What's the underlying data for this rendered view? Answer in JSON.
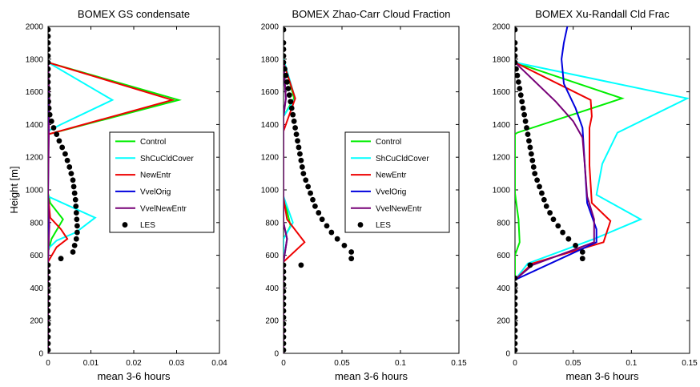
{
  "chart_data": [
    {
      "type": "line",
      "title": "BOMEX GS condensate",
      "xlabel": "mean 3-6 hours",
      "ylabel": "Height [m]",
      "xlim": [
        0,
        0.04
      ],
      "ylim": [
        0,
        2000
      ],
      "xticks": [
        "0",
        "0.01",
        "0.02",
        "0.03",
        "0.04"
      ],
      "yticks": [
        "0",
        "200",
        "400",
        "600",
        "800",
        "1000",
        "1200",
        "1400",
        "1600",
        "1800",
        "2000"
      ],
      "grid": false,
      "legend_position": "center-right",
      "series": [
        {
          "name": "Control",
          "color": "#00ee00",
          "x": [
            0,
            0,
            0.0008,
            0.0035,
            0.0005,
            0,
            0,
            0,
            0.0305,
            0
          ],
          "y": [
            0,
            620,
            700,
            820,
            920,
            980,
            1340,
            1340,
            1550,
            1780
          ]
        },
        {
          "name": "ShCuCldCover",
          "color": "#00ffff",
          "x": [
            0,
            0,
            0.002,
            0.0065,
            0.011,
            0,
            0,
            0.003,
            0.015,
            0
          ],
          "y": [
            0,
            640,
            690,
            740,
            830,
            960,
            1360,
            1400,
            1550,
            1780
          ]
        },
        {
          "name": "NewEntr",
          "color": "#ee0000",
          "x": [
            0,
            0,
            0.002,
            0.0045,
            0.003,
            0.0005,
            0,
            0,
            0.029,
            0
          ],
          "y": [
            0,
            560,
            650,
            700,
            760,
            830,
            970,
            1340,
            1550,
            1780
          ]
        },
        {
          "name": "VvelOrig",
          "color": "#0000dd",
          "x": [
            0,
            0,
            0.0002,
            0,
            0.0002,
            0
          ],
          "y": [
            0,
            560,
            800,
            970,
            1580,
            1780
          ]
        },
        {
          "name": "VvelNewEntr",
          "color": "#770077",
          "x": [
            0,
            0,
            0.0003,
            0,
            0.0003,
            0
          ],
          "y": [
            0,
            560,
            780,
            970,
            1560,
            1780
          ]
        },
        {
          "name": "LES",
          "color": "#000000",
          "marker": "circle",
          "x": [
            0,
            0,
            0,
            0,
            0,
            0,
            0,
            0,
            0,
            0,
            0,
            0,
            0,
            0,
            0.003,
            0.0058,
            0.0062,
            0.0066,
            0.0068,
            0.0068,
            0.0067,
            0.0066,
            0.0065,
            0.0064,
            0.0062,
            0.006,
            0.0058,
            0.0054,
            0.005,
            0.0045,
            0.004,
            0.0033,
            0.0026,
            0.002,
            0.0013,
            0.0008,
            0.0004,
            0.0002,
            0.0001,
            0,
            0,
            0,
            0,
            0,
            0,
            0,
            0,
            0,
            0,
            0
          ],
          "y": [
            20,
            60,
            100,
            140,
            180,
            220,
            260,
            300,
            340,
            380,
            420,
            460,
            500,
            540,
            580,
            620,
            660,
            700,
            740,
            780,
            820,
            860,
            900,
            940,
            980,
            1020,
            1060,
            1100,
            1140,
            1180,
            1220,
            1260,
            1300,
            1340,
            1380,
            1420,
            1460,
            1500,
            1540,
            1580,
            1620,
            1660,
            1700,
            1740,
            1780,
            1820,
            1860,
            1900,
            1940,
            1980
          ]
        }
      ]
    },
    {
      "type": "line",
      "title": "BOMEX Zhao-Carr Cloud Fraction",
      "xlabel": "mean 3-6 hours",
      "ylabel": "",
      "xlim": [
        0,
        0.15
      ],
      "ylim": [
        0,
        2000
      ],
      "xticks": [
        "0",
        "0.05",
        "0.1",
        "0.15"
      ],
      "yticks": [
        "0",
        "200",
        "400",
        "600",
        "800",
        "1000",
        "1200",
        "1400",
        "1600",
        "1800",
        "2000"
      ],
      "grid": false,
      "legend_position": "center-right",
      "series": [
        {
          "name": "Control",
          "color": "#00ee00",
          "x": [
            0,
            0,
            0.006,
            0,
            0,
            0.009,
            0
          ],
          "y": [
            0,
            700,
            780,
            960,
            1450,
            1560,
            1800
          ]
        },
        {
          "name": "ShCuCldCover",
          "color": "#00ffff",
          "x": [
            0,
            0,
            0.008,
            0,
            0,
            0.01,
            0
          ],
          "y": [
            0,
            700,
            800,
            960,
            1450,
            1560,
            1800
          ]
        },
        {
          "name": "NewEntr",
          "color": "#ee0000",
          "x": [
            0,
            0,
            0.018,
            0.003,
            0,
            0,
            0.01,
            0
          ],
          "y": [
            0,
            560,
            680,
            820,
            950,
            1360,
            1560,
            1780
          ]
        },
        {
          "name": "VvelOrig",
          "color": "#0000dd",
          "x": [
            0,
            0,
            0.003,
            0,
            0,
            0.002,
            0
          ],
          "y": [
            0,
            560,
            700,
            800,
            1450,
            1560,
            1780
          ]
        },
        {
          "name": "VvelNewEntr",
          "color": "#770077",
          "x": [
            0,
            0,
            0.003,
            0,
            0,
            0.002,
            0
          ],
          "y": [
            0,
            560,
            700,
            800,
            1450,
            1560,
            1780
          ]
        },
        {
          "name": "LES",
          "color": "#000000",
          "marker": "circle",
          "x": [
            0,
            0,
            0,
            0,
            0,
            0,
            0,
            0,
            0,
            0,
            0,
            0,
            0,
            0,
            0.015,
            0.058,
            0.058,
            0.052,
            0.046,
            0.041,
            0.037,
            0.033,
            0.03,
            0.027,
            0.025,
            0.023,
            0.021,
            0.019,
            0.017,
            0.016,
            0.015,
            0.014,
            0.013,
            0.012,
            0.011,
            0.01,
            0.009,
            0.008,
            0.007,
            0.006,
            0.005,
            0.004,
            0.003,
            0.002,
            0.001,
            0,
            0,
            0,
            0,
            0
          ],
          "y": [
            20,
            60,
            100,
            140,
            180,
            220,
            260,
            300,
            340,
            380,
            420,
            460,
            500,
            540,
            540,
            580,
            620,
            660,
            700,
            740,
            780,
            820,
            860,
            900,
            940,
            980,
            1020,
            1060,
            1100,
            1140,
            1180,
            1220,
            1260,
            1300,
            1340,
            1380,
            1420,
            1460,
            1500,
            1540,
            1580,
            1620,
            1660,
            1700,
            1740,
            1780,
            1820,
            1860,
            1900,
            1980
          ]
        }
      ]
    },
    {
      "type": "line",
      "title": "BOMEX Xu-Randall Cld Frac",
      "xlabel": "mean 3-6 hours",
      "ylabel": "",
      "xlim": [
        0,
        0.15
      ],
      "ylim": [
        0,
        2000
      ],
      "xticks": [
        "0",
        "0.05",
        "0.1",
        "0.15"
      ],
      "yticks": [
        "0",
        "200",
        "400",
        "600",
        "800",
        "1000",
        "1200",
        "1400",
        "1600",
        "1800",
        "2000"
      ],
      "grid": false,
      "legend_position": "none",
      "series": [
        {
          "name": "Control",
          "color": "#00ee00",
          "x": [
            0,
            0,
            0.004,
            0.003,
            0,
            0,
            0.002,
            0.092,
            0
          ],
          "y": [
            450,
            600,
            680,
            820,
            980,
            1340,
            1350,
            1560,
            1780
          ]
        },
        {
          "name": "ShCuCldCover",
          "color": "#00ffff",
          "x": [
            0,
            0.011,
            0.068,
            0.108,
            0.07,
            0.075,
            0.088,
            0.148,
            0
          ],
          "y": [
            450,
            550,
            700,
            820,
            970,
            1160,
            1350,
            1560,
            1780
          ]
        },
        {
          "name": "NewEntr",
          "color": "#ee0000",
          "x": [
            0,
            0.015,
            0.076,
            0.082,
            0.066,
            0.064,
            0.064,
            0.066,
            0.065,
            0
          ],
          "y": [
            450,
            550,
            680,
            810,
            920,
            1150,
            1380,
            1450,
            1550,
            1780
          ]
        },
        {
          "name": "VvelOrig",
          "color": "#0000dd",
          "x": [
            0,
            0.07,
            0.07,
            0.062,
            0.06,
            0.058,
            0.052,
            0.042,
            0.04,
            0.042,
            0.045
          ],
          "y": [
            450,
            680,
            760,
            920,
            1150,
            1380,
            1500,
            1650,
            1800,
            1900,
            2000
          ]
        },
        {
          "name": "VvelNewEntr",
          "color": "#770077",
          "x": [
            0,
            0.015,
            0.068,
            0.068,
            0.062,
            0.06,
            0.058,
            0.05,
            0.035,
            0
          ],
          "y": [
            450,
            540,
            680,
            820,
            960,
            1150,
            1320,
            1420,
            1540,
            1780
          ]
        },
        {
          "name": "LES",
          "color": "#000000",
          "marker": "circle",
          "x": [
            0,
            0,
            0,
            0,
            0,
            0,
            0,
            0,
            0,
            0,
            0,
            0,
            0.013,
            0.058,
            0.058,
            0.052,
            0.046,
            0.041,
            0.037,
            0.033,
            0.03,
            0.027,
            0.025,
            0.023,
            0.021,
            0.019,
            0.017,
            0.016,
            0.015,
            0.014,
            0.013,
            0.012,
            0.011,
            0.01,
            0.009,
            0.008,
            0.007,
            0.006,
            0.005,
            0.004,
            0.003,
            0.002,
            0.001,
            0,
            0,
            0,
            0,
            0
          ],
          "y": [
            20,
            60,
            100,
            140,
            180,
            220,
            260,
            300,
            340,
            380,
            420,
            460,
            540,
            580,
            620,
            660,
            700,
            740,
            780,
            820,
            860,
            900,
            940,
            980,
            1020,
            1060,
            1100,
            1140,
            1180,
            1220,
            1260,
            1300,
            1340,
            1380,
            1420,
            1460,
            1500,
            1540,
            1580,
            1620,
            1660,
            1700,
            1740,
            1780,
            1820,
            1860,
            1900,
            1980
          ]
        }
      ]
    }
  ]
}
